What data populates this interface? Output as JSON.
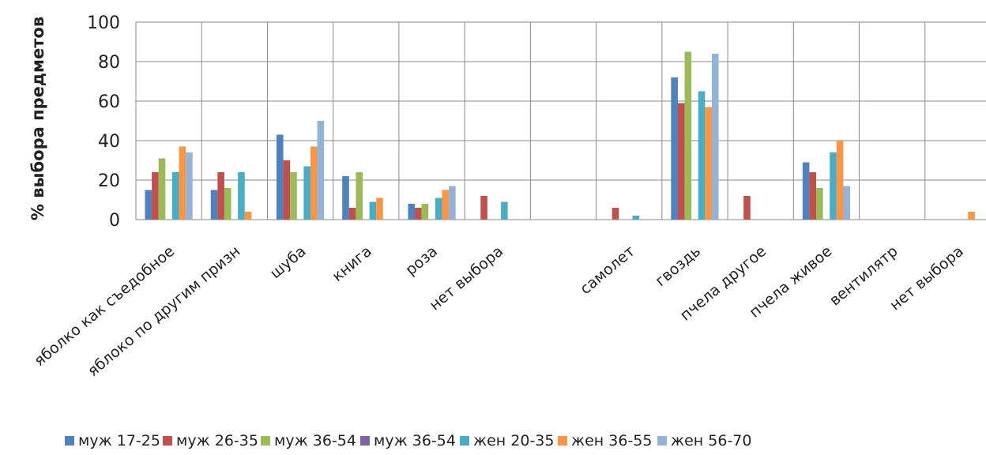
{
  "chart_data": {
    "type": "bar",
    "title": "",
    "xlabel": "",
    "ylabel": "% выбора предметов",
    "ylim": [
      0,
      100
    ],
    "yticks": [
      0,
      20,
      40,
      60,
      80,
      100
    ],
    "grid": "vertical lines between categories and horizontal lines at ticks",
    "legend_position": "bottom",
    "categories": [
      "яболко как съедобное",
      "яблоко по другим призн",
      "шуба",
      "книга",
      "роза",
      "нет выбора",
      "",
      "самолет",
      "гвоздь",
      "пчела другое",
      "пчела живое",
      "вентилятр",
      "нет выбора"
    ],
    "series": [
      {
        "name": "муж 17-25",
        "color": "#4F81BD",
        "values": [
          15,
          15,
          43,
          22,
          8,
          0,
          0,
          0,
          72,
          0,
          29,
          0,
          0
        ]
      },
      {
        "name": "муж 26-35",
        "color": "#C0504D",
        "values": [
          24,
          24,
          30,
          6,
          6,
          12,
          0,
          6,
          59,
          12,
          24,
          0,
          0
        ]
      },
      {
        "name": "муж 36-54",
        "color": "#9BBB59",
        "values": [
          31,
          16,
          24,
          24,
          8,
          0,
          0,
          0,
          85,
          0,
          16,
          0,
          0
        ]
      },
      {
        "name": "муж 36-54",
        "color": "#8064A2",
        "values": [
          0,
          0,
          0,
          0,
          0,
          0,
          0,
          0,
          0,
          0,
          0,
          0,
          0
        ]
      },
      {
        "name": "жен 20-35",
        "color": "#4BACC6",
        "values": [
          24,
          24,
          27,
          9,
          11,
          9,
          0,
          2,
          65,
          0,
          34,
          0,
          0
        ]
      },
      {
        "name": "жен 36-55",
        "color": "#F79646",
        "values": [
          37,
          4,
          37,
          11,
          15,
          0,
          0,
          0,
          57,
          0,
          40,
          0,
          4
        ]
      },
      {
        "name": "жен 56-70",
        "color": "#95B3D7",
        "values": [
          34,
          0,
          50,
          0,
          17,
          0,
          0,
          0,
          84,
          0,
          17,
          0,
          0
        ]
      }
    ]
  }
}
